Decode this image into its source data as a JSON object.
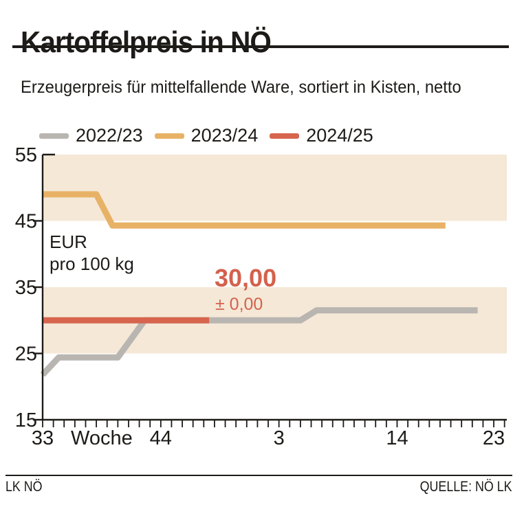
{
  "header": {
    "title": "Kartoffelpreis in NÖ",
    "subtitle": "Erzeugerpreis für mittelfallende Ware, sortiert in Kisten, netto"
  },
  "legend": {
    "items": [
      {
        "label": "2022/23",
        "color": "#b9b5b1"
      },
      {
        "label": "2023/24",
        "color": "#e8b266"
      },
      {
        "label": "2024/25",
        "color": "#d7654e"
      }
    ]
  },
  "colors": {
    "band": "#f5e8d7",
    "gray_series": "#b9b5b1",
    "orange_series": "#e8b266",
    "red_series": "#d7654e",
    "accent_red": "#d4614c",
    "ink": "#1d1b18"
  },
  "chart_data": {
    "type": "line",
    "title": "Kartoffelpreis in NÖ",
    "ylabel_line1": "EUR",
    "ylabel_line2": "pro 100 kg",
    "ylim": [
      15,
      55
    ],
    "y_ticks": [
      55,
      45,
      35,
      25,
      15
    ],
    "x_axis_weeks_range": "KW 33 bis KW 24",
    "x_tick_labels": [
      {
        "label": "33",
        "week": 33
      },
      {
        "label": "Woche",
        "week": 38.5
      },
      {
        "label": "44",
        "week": 44
      },
      {
        "label": "3",
        "week": 3
      },
      {
        "label": "14",
        "week": 14
      },
      {
        "label": "23",
        "week": 23
      }
    ],
    "background_bands_y": [
      [
        45,
        55
      ],
      [
        25,
        35
      ]
    ],
    "grid": false,
    "legend_position": "top",
    "series": [
      {
        "name": "2022/23",
        "color": "#b9b5b1",
        "points": [
          [
            33,
            21.8
          ],
          [
            34.5,
            24.4
          ],
          [
            40,
            24.4
          ],
          [
            42.5,
            30
          ],
          [
            5,
            30
          ],
          [
            6.5,
            31.5
          ],
          [
            21.5,
            31.5
          ]
        ]
      },
      {
        "name": "2023/24",
        "color": "#e8b266",
        "points": [
          [
            33,
            49
          ],
          [
            38,
            49
          ],
          [
            39.5,
            44.3
          ],
          [
            18.5,
            44.3
          ]
        ]
      },
      {
        "name": "2024/25",
        "color": "#d7654e",
        "points": [
          [
            33,
            30
          ],
          [
            48.5,
            30
          ]
        ]
      }
    ],
    "annotation": {
      "value": "30,00",
      "delta": "± 0,00"
    }
  },
  "footer": {
    "left": "LK NÖ",
    "right": "QUELLE: NÖ LK"
  }
}
